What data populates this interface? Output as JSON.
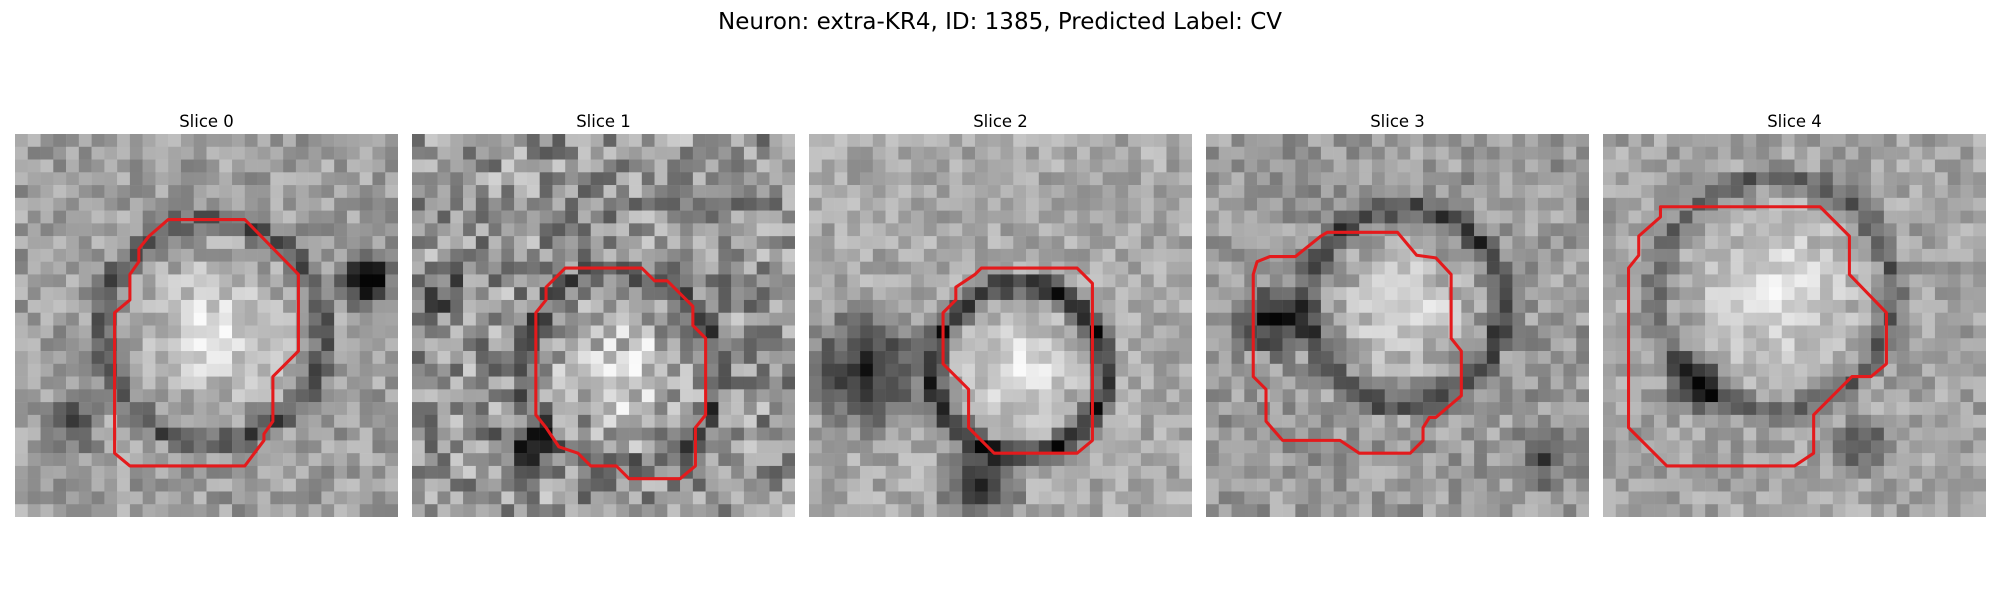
{
  "figure": {
    "suptitle": "Neuron: extra-KR4, ID: 1385, Predicted Label: CV"
  },
  "contour_color": "#e41a1c",
  "panels": [
    {
      "title": "Slice 0",
      "image_desc": "grayscale-microscopy-patch"
    },
    {
      "title": "Slice 1",
      "image_desc": "grayscale-microscopy-patch"
    },
    {
      "title": "Slice 2",
      "image_desc": "grayscale-microscopy-patch"
    },
    {
      "title": "Slice 3",
      "image_desc": "grayscale-microscopy-patch"
    },
    {
      "title": "Slice 4",
      "image_desc": "grayscale-microscopy-patch"
    }
  ]
}
